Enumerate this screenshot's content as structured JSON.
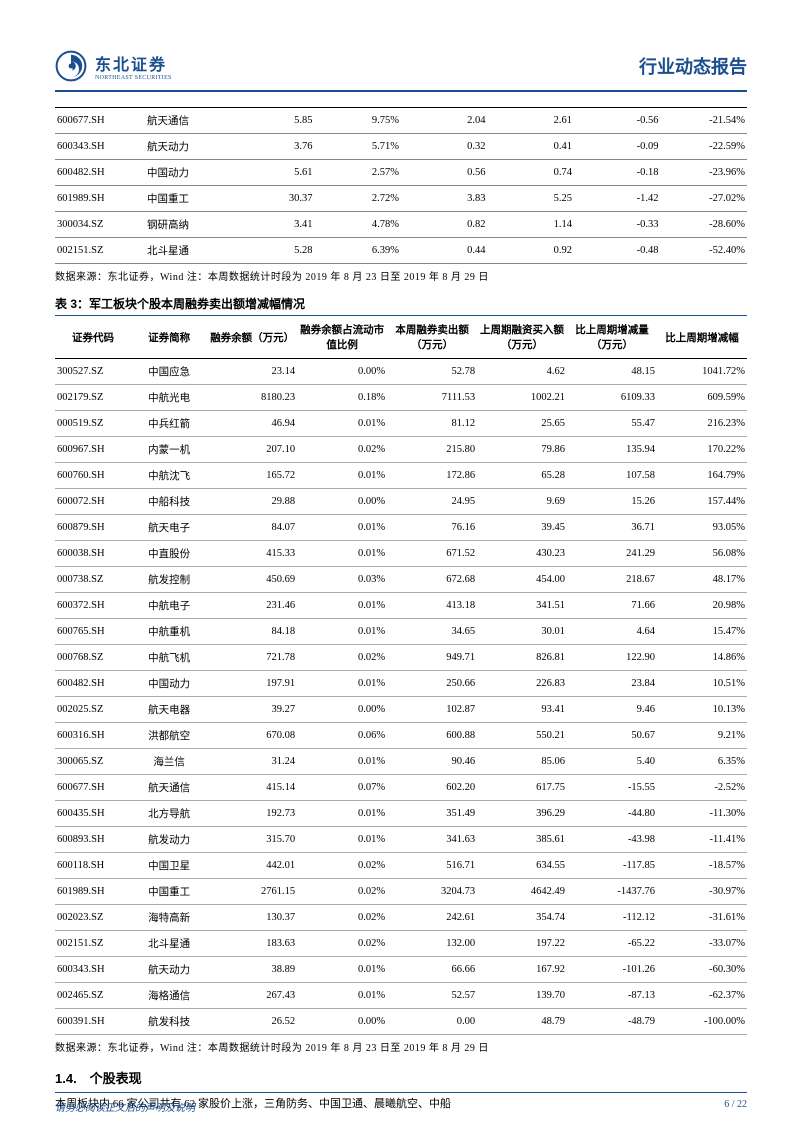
{
  "header": {
    "company_cn": "东北证券",
    "company_en": "NORTHEAST SECURITIES",
    "report_title": "行业动态报告"
  },
  "table1": {
    "rows": [
      [
        "600677.SH",
        "航天通信",
        "5.85",
        "9.75%",
        "2.04",
        "2.61",
        "-0.56",
        "-21.54%"
      ],
      [
        "600343.SH",
        "航天动力",
        "3.76",
        "5.71%",
        "0.32",
        "0.41",
        "-0.09",
        "-22.59%"
      ],
      [
        "600482.SH",
        "中国动力",
        "5.61",
        "2.57%",
        "0.56",
        "0.74",
        "-0.18",
        "-23.96%"
      ],
      [
        "601989.SH",
        "中国重工",
        "30.37",
        "2.72%",
        "3.83",
        "5.25",
        "-1.42",
        "-27.02%"
      ],
      [
        "300034.SZ",
        "钢研高纳",
        "3.41",
        "4.78%",
        "0.82",
        "1.14",
        "-0.33",
        "-28.60%"
      ],
      [
        "002151.SZ",
        "北斗星通",
        "5.28",
        "6.39%",
        "0.44",
        "0.92",
        "-0.48",
        "-52.40%"
      ]
    ],
    "source": "数据来源：东北证券，Wind 注：本周数据统计时段为 2019 年 8 月 23 日至 2019 年 8 月 29 日"
  },
  "table2": {
    "title": "表 3：军工板块个股本周融券卖出额增减幅情况",
    "headers": [
      "证券代码",
      "证券简称",
      "融券余额（万元）",
      "融券余额占流动市值比例",
      "本周融券卖出额（万元）",
      "上周期融资买入额（万元）",
      "比上周期增减量（万元）",
      "比上周期增减幅"
    ],
    "rows": [
      [
        "300527.SZ",
        "中国应急",
        "23.14",
        "0.00%",
        "52.78",
        "4.62",
        "48.15",
        "1041.72%"
      ],
      [
        "002179.SZ",
        "中航光电",
        "8180.23",
        "0.18%",
        "7111.53",
        "1002.21",
        "6109.33",
        "609.59%"
      ],
      [
        "000519.SZ",
        "中兵红箭",
        "46.94",
        "0.01%",
        "81.12",
        "25.65",
        "55.47",
        "216.23%"
      ],
      [
        "600967.SH",
        "内蒙一机",
        "207.10",
        "0.02%",
        "215.80",
        "79.86",
        "135.94",
        "170.22%"
      ],
      [
        "600760.SH",
        "中航沈飞",
        "165.72",
        "0.01%",
        "172.86",
        "65.28",
        "107.58",
        "164.79%"
      ],
      [
        "600072.SH",
        "中船科技",
        "29.88",
        "0.00%",
        "24.95",
        "9.69",
        "15.26",
        "157.44%"
      ],
      [
        "600879.SH",
        "航天电子",
        "84.07",
        "0.01%",
        "76.16",
        "39.45",
        "36.71",
        "93.05%"
      ],
      [
        "600038.SH",
        "中直股份",
        "415.33",
        "0.01%",
        "671.52",
        "430.23",
        "241.29",
        "56.08%"
      ],
      [
        "000738.SZ",
        "航发控制",
        "450.69",
        "0.03%",
        "672.68",
        "454.00",
        "218.67",
        "48.17%"
      ],
      [
        "600372.SH",
        "中航电子",
        "231.46",
        "0.01%",
        "413.18",
        "341.51",
        "71.66",
        "20.98%"
      ],
      [
        "600765.SH",
        "中航重机",
        "84.18",
        "0.01%",
        "34.65",
        "30.01",
        "4.64",
        "15.47%"
      ],
      [
        "000768.SZ",
        "中航飞机",
        "721.78",
        "0.02%",
        "949.71",
        "826.81",
        "122.90",
        "14.86%"
      ],
      [
        "600482.SH",
        "中国动力",
        "197.91",
        "0.01%",
        "250.66",
        "226.83",
        "23.84",
        "10.51%"
      ],
      [
        "002025.SZ",
        "航天电器",
        "39.27",
        "0.00%",
        "102.87",
        "93.41",
        "9.46",
        "10.13%"
      ],
      [
        "600316.SH",
        "洪都航空",
        "670.08",
        "0.06%",
        "600.88",
        "550.21",
        "50.67",
        "9.21%"
      ],
      [
        "300065.SZ",
        "海兰信",
        "31.24",
        "0.01%",
        "90.46",
        "85.06",
        "5.40",
        "6.35%"
      ],
      [
        "600677.SH",
        "航天通信",
        "415.14",
        "0.07%",
        "602.20",
        "617.75",
        "-15.55",
        "-2.52%"
      ],
      [
        "600435.SH",
        "北方导航",
        "192.73",
        "0.01%",
        "351.49",
        "396.29",
        "-44.80",
        "-11.30%"
      ],
      [
        "600893.SH",
        "航发动力",
        "315.70",
        "0.01%",
        "341.63",
        "385.61",
        "-43.98",
        "-11.41%"
      ],
      [
        "600118.SH",
        "中国卫星",
        "442.01",
        "0.02%",
        "516.71",
        "634.55",
        "-117.85",
        "-18.57%"
      ],
      [
        "601989.SH",
        "中国重工",
        "2761.15",
        "0.02%",
        "3204.73",
        "4642.49",
        "-1437.76",
        "-30.97%"
      ],
      [
        "002023.SZ",
        "海特高新",
        "130.37",
        "0.02%",
        "242.61",
        "354.74",
        "-112.12",
        "-31.61%"
      ],
      [
        "002151.SZ",
        "北斗星通",
        "183.63",
        "0.02%",
        "132.00",
        "197.22",
        "-65.22",
        "-33.07%"
      ],
      [
        "600343.SH",
        "航天动力",
        "38.89",
        "0.01%",
        "66.66",
        "167.92",
        "-101.26",
        "-60.30%"
      ],
      [
        "002465.SZ",
        "海格通信",
        "267.43",
        "0.01%",
        "52.57",
        "139.70",
        "-87.13",
        "-62.37%"
      ],
      [
        "600391.SH",
        "航发科技",
        "26.52",
        "0.00%",
        "0.00",
        "48.79",
        "-48.79",
        "-100.00%"
      ]
    ],
    "source": "数据来源：东北证券，Wind 注：本周数据统计时段为 2019 年 8 月 23 日至 2019 年 8 月 29 日"
  },
  "section": {
    "heading": "1.4.　个股表现",
    "body": "本周板块内 66 家公司共有 62 家股价上涨，三角防务、中国卫通、晨曦航空、中船"
  },
  "footer": {
    "note": "请务必阅读正文后的声明及说明",
    "page": "6 / 22"
  }
}
